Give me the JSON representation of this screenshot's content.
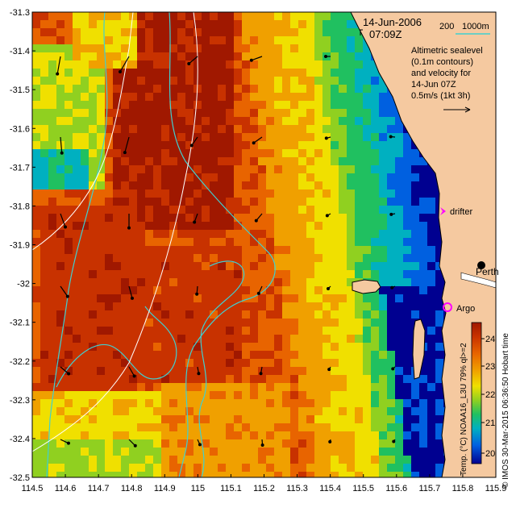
{
  "header": {
    "date": "14-Jun-2006",
    "time": "07:09Z",
    "isobath_labels": [
      "200",
      "1000m"
    ]
  },
  "annotation": {
    "lines": [
      "Altimetric sealevel",
      "(0.1m contours)",
      "and velocity for",
      "14-Jun 07Z"
    ],
    "scale_text": "0.5m/s (1kt 3h)"
  },
  "places": {
    "drifter": "drifter",
    "argo": "Argo",
    "perth": "Perth"
  },
  "colorbar": {
    "ticks": [
      "24",
      "23",
      "22",
      "21",
      "20"
    ],
    "ramp": [
      "#a01800",
      "#c83200",
      "#e86400",
      "#f0a000",
      "#f0e000",
      "#90d020",
      "#20c060",
      "#00b0c0",
      "#0060e0",
      "#000090"
    ]
  },
  "caption": {
    "left": "Temp. (°C) NOAA16_L3U 79% ql>=2",
    "right": "© IMOS 30-Mar-2015 06:36:50 Hobart time"
  },
  "axes": {
    "x_ticks": [
      "114.5",
      "114.6",
      "114.7",
      "114.8",
      "114.9",
      "115",
      "115.1",
      "115.2",
      "115.3",
      "115.4",
      "115.5",
      "115.6",
      "115.7",
      "115.8",
      "115.9"
    ],
    "y_ticks": [
      "-31.3",
      "-31.4",
      "-31.5",
      "-31.6",
      "-31.7",
      "-31.8",
      "-31.9",
      "-32",
      "-32.1",
      "-32.2",
      "-32.3",
      "-32.4",
      "-32.5"
    ]
  },
  "colors": {
    "land": "#f5c9a0",
    "isobath": "#40d0d0",
    "track": "#ffffff",
    "marker": "#ff00ff"
  }
}
